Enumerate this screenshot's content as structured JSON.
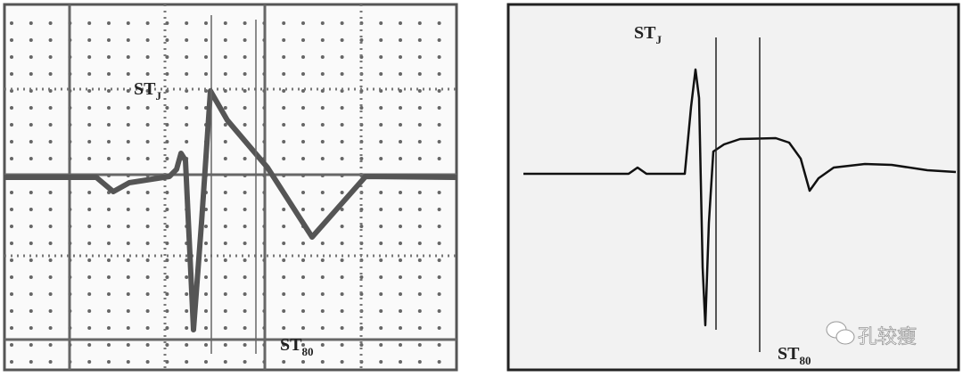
{
  "left_panel": {
    "label_j": {
      "main": "ST",
      "sub": "J"
    },
    "label_80": {
      "main": "ST",
      "sub": "80"
    }
  },
  "right_panel": {
    "label_j": {
      "main": "ST",
      "sub": "J"
    },
    "label_80": {
      "main": "ST",
      "sub": "80"
    }
  },
  "watermark": {
    "text": "孔较瘦",
    "icon": "wechat-icon"
  },
  "colors": {
    "grid": "#555555",
    "trace": "#444444",
    "right_trace": "#111111",
    "right_bg": "#f2f2f2"
  }
}
